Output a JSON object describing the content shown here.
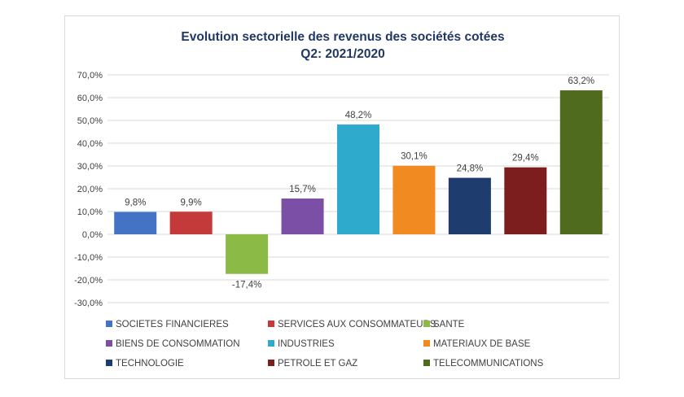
{
  "chart_data": {
    "type": "bar",
    "title_line1": "Evolution sectorielle des revenus des sociétés cotées",
    "title_line2": "Q2: 2021/2020",
    "xlabel": "",
    "ylabel": "",
    "ylim": [
      -30,
      70
    ],
    "yticks": [
      "70,0%",
      "60,0%",
      "50,0%",
      "40,0%",
      "30,0%",
      "20,0%",
      "10,0%",
      "0,0%",
      "-10,0%",
      "-20,0%",
      "-30,0%"
    ],
    "ytick_values": [
      70,
      60,
      50,
      40,
      30,
      20,
      10,
      0,
      -10,
      -20,
      -30
    ],
    "grid": true,
    "legend_position": "bottom",
    "series": [
      {
        "name": "SOCIETES FINANCIERES",
        "value": 9.8,
        "label": "9,8%",
        "color": "#4472c4"
      },
      {
        "name": "SERVICES AUX CONSOMMATEURS",
        "value": 9.9,
        "label": "9,9%",
        "color": "#c43a3a"
      },
      {
        "name": "SANTE",
        "value": -17.4,
        "label": "-17,4%",
        "color": "#8cba47"
      },
      {
        "name": "BIENS DE CONSOMMATION",
        "value": 15.7,
        "label": "15,7%",
        "color": "#7b4fa6"
      },
      {
        "name": "INDUSTRIES",
        "value": 48.2,
        "label": "48,2%",
        "color": "#2eaacc"
      },
      {
        "name": "MATERIAUX DE BASE",
        "value": 30.1,
        "label": "30,1%",
        "color": "#f28a22"
      },
      {
        "name": "TECHNOLOGIE",
        "value": 24.8,
        "label": "24,8%",
        "color": "#1f3c6e"
      },
      {
        "name": "PETROLE ET GAZ",
        "value": 29.4,
        "label": "29,4%",
        "color": "#7d1e1e"
      },
      {
        "name": "TELECOMMUNICATIONS",
        "value": 63.2,
        "label": "63,2%",
        "color": "#4e6b1e"
      }
    ]
  }
}
